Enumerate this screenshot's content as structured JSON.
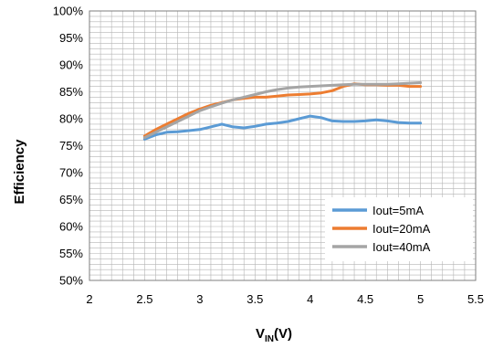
{
  "chart_data": {
    "type": "line",
    "title": "",
    "xlabel": {
      "main": "V",
      "sub": "IN",
      "suffix": "(V)"
    },
    "ylabel": "Efficiency",
    "xlim": [
      2,
      5.5
    ],
    "ylim": [
      50,
      100
    ],
    "x_ticks": [
      "2",
      "2.5",
      "3",
      "3.5",
      "4",
      "4.5",
      "5",
      "5.5"
    ],
    "y_ticks": [
      "50%",
      "55%",
      "60%",
      "65%",
      "70%",
      "75%",
      "80%",
      "85%",
      "90%",
      "95%",
      "100%"
    ],
    "grid": true,
    "legend_position": "bottom-right",
    "series": [
      {
        "name": "Iout=5mA",
        "color": "#5b9bd5",
        "x": [
          2.5,
          2.6,
          2.7,
          2.8,
          2.9,
          3.0,
          3.1,
          3.2,
          3.3,
          3.4,
          3.5,
          3.6,
          3.7,
          3.8,
          3.9,
          4.0,
          4.1,
          4.2,
          4.3,
          4.4,
          4.5,
          4.6,
          4.7,
          4.8,
          4.9,
          5.0
        ],
        "y": [
          76.2,
          77.0,
          77.5,
          77.6,
          77.8,
          78.0,
          78.5,
          79.0,
          78.5,
          78.3,
          78.6,
          79.0,
          79.2,
          79.5,
          80.0,
          80.5,
          80.2,
          79.6,
          79.5,
          79.5,
          79.6,
          79.8,
          79.6,
          79.3,
          79.2,
          79.2
        ]
      },
      {
        "name": "Iout=20mA",
        "color": "#ed7d31",
        "x": [
          2.5,
          2.6,
          2.7,
          2.8,
          2.9,
          3.0,
          3.1,
          3.2,
          3.3,
          3.4,
          3.5,
          3.6,
          3.7,
          3.8,
          3.9,
          4.0,
          4.1,
          4.2,
          4.3,
          4.4,
          4.5,
          4.6,
          4.7,
          4.8,
          4.9,
          5.0
        ],
        "y": [
          76.8,
          78.0,
          79.0,
          80.0,
          81.0,
          81.8,
          82.5,
          83.0,
          83.5,
          83.8,
          84.0,
          84.0,
          84.2,
          84.4,
          84.5,
          84.6,
          84.8,
          85.2,
          86.0,
          86.5,
          86.3,
          86.3,
          86.2,
          86.2,
          86.0,
          86.0
        ]
      },
      {
        "name": "Iout=40mA",
        "color": "#a5a5a5",
        "x": [
          2.5,
          2.6,
          2.7,
          2.8,
          2.9,
          3.0,
          3.1,
          3.2,
          3.3,
          3.4,
          3.5,
          3.6,
          3.7,
          3.8,
          3.9,
          4.0,
          4.1,
          4.2,
          4.3,
          4.4,
          4.5,
          4.6,
          4.7,
          4.8,
          4.9,
          5.0
        ],
        "y": [
          76.5,
          77.5,
          78.5,
          79.5,
          80.5,
          81.5,
          82.2,
          82.9,
          83.5,
          84.0,
          84.5,
          85.0,
          85.4,
          85.7,
          85.9,
          86.0,
          86.1,
          86.2,
          86.3,
          86.4,
          86.4,
          86.4,
          86.4,
          86.5,
          86.6,
          86.7
        ]
      }
    ]
  }
}
